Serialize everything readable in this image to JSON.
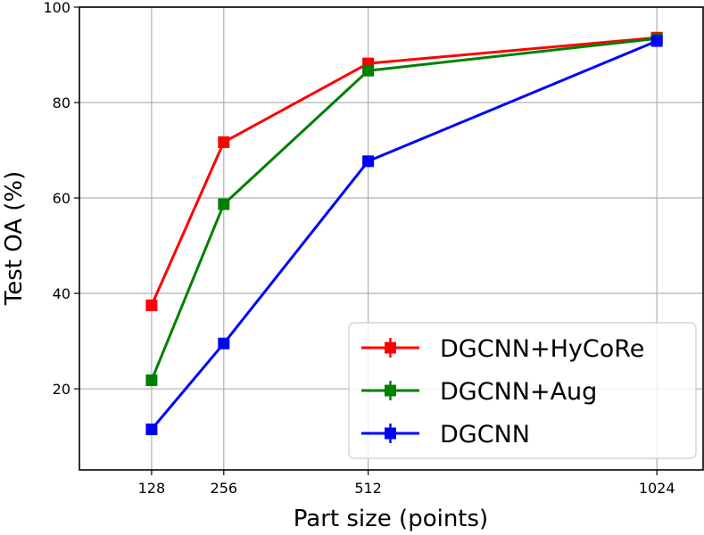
{
  "chart_data": {
    "type": "line",
    "title": "",
    "xlabel": "Part size (points)",
    "ylabel": "Test OA (%)",
    "x": [
      128,
      256,
      512,
      1024
    ],
    "x_tick_labels": [
      "128",
      "256",
      "512",
      "1024"
    ],
    "y_ticks": [
      20,
      40,
      60,
      80,
      100
    ],
    "y_tick_labels": [
      "20",
      "40",
      "60",
      "80",
      "100"
    ],
    "xlim": [
      0,
      1106
    ],
    "ylim": [
      3,
      100
    ],
    "grid": true,
    "legend_position": "lower-right",
    "series": [
      {
        "name": "DGCNN+HyCoRe",
        "color": "#ff0000",
        "marker": "square",
        "values": [
          37.5,
          71.7,
          88.2,
          93.6
        ]
      },
      {
        "name": "DGCNN+Aug",
        "color": "#008000",
        "marker": "square",
        "values": [
          21.8,
          58.7,
          86.7,
          93.4
        ]
      },
      {
        "name": "DGCNN",
        "color": "#0000ff",
        "marker": "square",
        "values": [
          11.5,
          29.5,
          67.7,
          92.9
        ]
      }
    ]
  }
}
